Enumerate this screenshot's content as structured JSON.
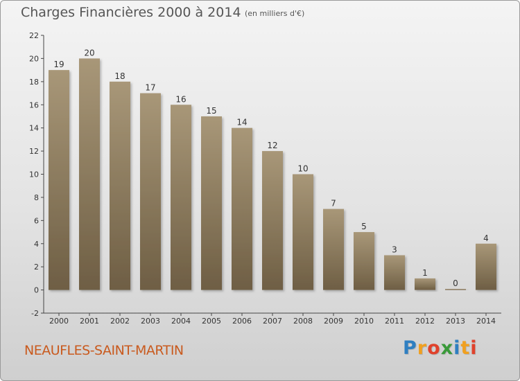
{
  "title": "Charges Financières 2000 à 2014",
  "subtitle": "(en milliers d'€)",
  "commune": "NEAUFLES-SAINT-MARTIN",
  "logo": {
    "letters": [
      "P",
      "r",
      "o",
      "x",
      "i",
      "t",
      "i"
    ],
    "colors": [
      "#2f7fc1",
      "#f0a020",
      "#e0422c",
      "#3a9a3a",
      "#2f7fc1",
      "#f0a020",
      "#e0422c"
    ]
  },
  "colors": {
    "bar_top": "#a89778",
    "bar_bottom": "#6e5e44",
    "frame_border": "#9a9a9a",
    "commune": "#c95a1e"
  },
  "chart_data": {
    "type": "bar",
    "categories": [
      "2000",
      "2001",
      "2002",
      "2003",
      "2004",
      "2005",
      "2006",
      "2007",
      "2008",
      "2009",
      "2010",
      "2011",
      "2012",
      "2013",
      "2014"
    ],
    "values": [
      19,
      20,
      18,
      17,
      16,
      15,
      14,
      12,
      10,
      7,
      5,
      3,
      1,
      0,
      4
    ],
    "yticks": [
      "-2",
      "0",
      "2",
      "4",
      "6",
      "8",
      "10",
      "12",
      "14",
      "16",
      "18",
      "20",
      "22"
    ],
    "ylim": [
      -2,
      22
    ],
    "grid": false
  }
}
